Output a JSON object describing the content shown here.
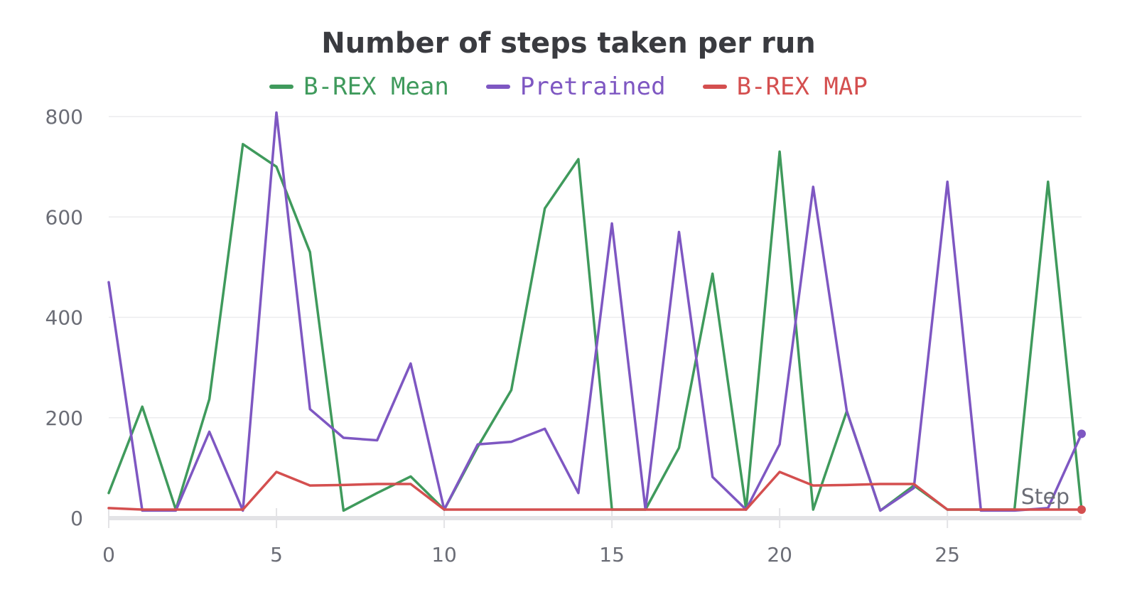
{
  "chart_data": {
    "type": "line",
    "title": "Number of steps taken per run",
    "xlabel": "Step",
    "ylabel": "",
    "xlim": [
      0,
      29
    ],
    "ylim": [
      0,
      800
    ],
    "xticks": [
      0,
      5,
      10,
      15,
      20,
      25
    ],
    "yticks": [
      0,
      200,
      400,
      600,
      800
    ],
    "grid": true,
    "legend_position": "top-center",
    "x": [
      0,
      1,
      2,
      3,
      4,
      5,
      6,
      7,
      8,
      9,
      10,
      11,
      12,
      13,
      14,
      15,
      16,
      17,
      18,
      19,
      20,
      21,
      22,
      23,
      24,
      25,
      26,
      27,
      28,
      29
    ],
    "series": [
      {
        "name": "B-REX Mean",
        "color": "#3f9a5c",
        "values": [
          50,
          222,
          17,
          237,
          745,
          700,
          530,
          15,
          50,
          83,
          17,
          142,
          255,
          617,
          715,
          17,
          17,
          140,
          487,
          17,
          730,
          17,
          213,
          15,
          65,
          17,
          17,
          17,
          670,
          17
        ]
      },
      {
        "name": "Pretrained",
        "color": "#7e57c2",
        "values": [
          470,
          15,
          15,
          172,
          15,
          808,
          217,
          160,
          155,
          308,
          17,
          147,
          152,
          178,
          50,
          587,
          17,
          570,
          82,
          17,
          147,
          660,
          213,
          15,
          60,
          670,
          15,
          15,
          20,
          168
        ]
      },
      {
        "name": "B-REX MAP",
        "color": "#d44f4f",
        "values": [
          20,
          17,
          17,
          17,
          17,
          92,
          65,
          66,
          68,
          68,
          17,
          17,
          17,
          17,
          17,
          17,
          17,
          17,
          17,
          17,
          92,
          65,
          66,
          68,
          68,
          17,
          17,
          17,
          17,
          17
        ]
      }
    ]
  }
}
